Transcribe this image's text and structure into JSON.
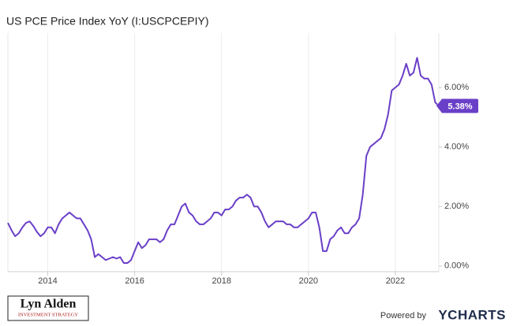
{
  "chart_data": {
    "type": "line",
    "title": "US PCE Price Index YoY (I:USCPCEPIY)",
    "x": [
      2013.083,
      2013.167,
      2013.25,
      2013.333,
      2013.417,
      2013.5,
      2013.583,
      2013.667,
      2013.75,
      2013.833,
      2013.917,
      2014,
      2014.083,
      2014.167,
      2014.25,
      2014.333,
      2014.417,
      2014.5,
      2014.583,
      2014.667,
      2014.75,
      2014.833,
      2014.917,
      2015,
      2015.083,
      2015.167,
      2015.25,
      2015.333,
      2015.417,
      2015.5,
      2015.583,
      2015.667,
      2015.75,
      2015.833,
      2015.917,
      2016,
      2016.083,
      2016.167,
      2016.25,
      2016.333,
      2016.417,
      2016.5,
      2016.583,
      2016.667,
      2016.75,
      2016.833,
      2016.917,
      2017,
      2017.083,
      2017.167,
      2017.25,
      2017.333,
      2017.417,
      2017.5,
      2017.583,
      2017.667,
      2017.75,
      2017.833,
      2017.917,
      2018,
      2018.083,
      2018.167,
      2018.25,
      2018.333,
      2018.417,
      2018.5,
      2018.583,
      2018.667,
      2018.75,
      2018.833,
      2018.917,
      2019,
      2019.083,
      2019.167,
      2019.25,
      2019.333,
      2019.417,
      2019.5,
      2019.583,
      2019.667,
      2019.75,
      2019.833,
      2019.917,
      2020,
      2020.083,
      2020.167,
      2020.25,
      2020.333,
      2020.417,
      2020.5,
      2020.583,
      2020.667,
      2020.75,
      2020.833,
      2020.917,
      2021,
      2021.083,
      2021.167,
      2021.25,
      2021.333,
      2021.417,
      2021.5,
      2021.583,
      2021.667,
      2021.75,
      2021.833,
      2021.917,
      2022,
      2022.083,
      2022.167,
      2022.25,
      2022.333,
      2022.417,
      2022.5,
      2022.583,
      2022.667,
      2022.75,
      2022.833,
      2022.917,
      2023
    ],
    "series": [
      {
        "name": "US PCE Price Index YoY",
        "color": "#6a3fc8",
        "values": [
          1.45,
          1.2,
          1.0,
          1.1,
          1.3,
          1.45,
          1.5,
          1.35,
          1.15,
          1.0,
          1.1,
          1.3,
          1.3,
          1.1,
          1.4,
          1.6,
          1.7,
          1.8,
          1.7,
          1.6,
          1.6,
          1.4,
          1.2,
          0.9,
          0.3,
          0.4,
          0.3,
          0.2,
          0.25,
          0.3,
          0.25,
          0.3,
          0.1,
          0.1,
          0.2,
          0.5,
          0.8,
          0.6,
          0.7,
          0.9,
          0.9,
          0.9,
          0.8,
          0.9,
          1.2,
          1.4,
          1.4,
          1.7,
          2.0,
          2.1,
          1.8,
          1.7,
          1.5,
          1.4,
          1.4,
          1.5,
          1.6,
          1.8,
          1.8,
          1.7,
          1.9,
          1.9,
          2.0,
          2.2,
          2.3,
          2.3,
          2.4,
          2.3,
          2.0,
          2.0,
          1.8,
          1.5,
          1.3,
          1.4,
          1.5,
          1.5,
          1.5,
          1.4,
          1.4,
          1.3,
          1.3,
          1.4,
          1.5,
          1.6,
          1.8,
          1.8,
          1.3,
          0.5,
          0.5,
          0.9,
          1.0,
          1.2,
          1.3,
          1.1,
          1.1,
          1.3,
          1.4,
          1.6,
          2.4,
          3.7,
          4.0,
          4.1,
          4.2,
          4.3,
          4.6,
          5.1,
          5.9,
          6.0,
          6.1,
          6.4,
          6.8,
          6.4,
          6.5,
          7.0,
          6.4,
          6.3,
          6.3,
          6.1,
          5.5,
          5.38
        ]
      }
    ],
    "end_label": "5.38%",
    "xlim": [
      2013.083,
      2023
    ],
    "xticks": [
      2014,
      2016,
      2018,
      2020,
      2022
    ],
    "ylim": [
      -0.19,
      7.83
    ],
    "yticks": [
      {
        "value": 0,
        "label": "0.00%"
      },
      {
        "value": 2,
        "label": "2.00%"
      },
      {
        "value": 4,
        "label": "4.00%"
      },
      {
        "value": 6,
        "label": "6.00%"
      }
    ],
    "grid": "x"
  },
  "branding": {
    "logo_name": "Lyn Alden",
    "logo_tagline": "INVESTMENT STRATEGY",
    "powered_by": "Powered by",
    "provider": "YCHARTS"
  }
}
